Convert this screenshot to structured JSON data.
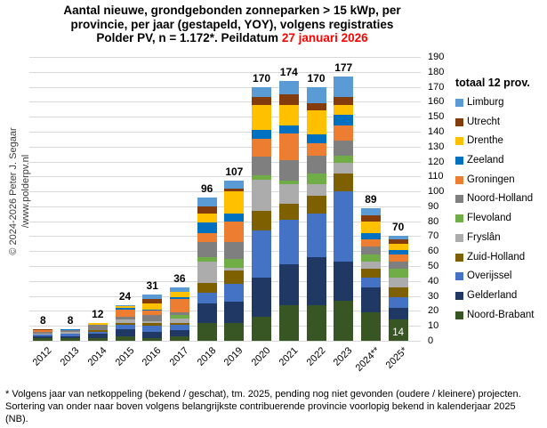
{
  "title": {
    "line1": "Aantal nieuwe, grondgebonden zonneparken > 15 kWp, per",
    "line2": "provincie, per jaar (gestapeld, YOY), volgens registraties",
    "line3_prefix": "Polder PV, n = 1.172*. Peildatum ",
    "line3_date": "27 januari 2026",
    "date_color": "#FF0000"
  },
  "copyright": {
    "line1": "© 2024-2026 Peter J. Segaar",
    "line2": "/www.polderpv.nl"
  },
  "legend": {
    "header": "totaal 12 prov."
  },
  "footnote": "* Volgens jaar van netkoppeling (bekend / geschat), tm. 2025, pending nog niet gevonden (oudere / kleinere) projecten. Sortering van onder naar boven volgens belangrijkste contribuerende provincie voorlopig bekend in kalenderjaar 2025 (NB).",
  "chart_data": {
    "type": "bar",
    "stacked": true,
    "stack_order": "bottom-to-top",
    "legend_order": "top-of-stack-first",
    "grid": true,
    "legend_position": "right",
    "ylim": [
      0,
      190
    ],
    "ytick_step": 10,
    "xlabel": "",
    "ylabel": "",
    "categories": [
      "2012",
      "2013",
      "2014",
      "2015",
      "2016",
      "2017",
      "2018",
      "2019",
      "2020",
      "2021",
      "2022",
      "2023",
      "2024**",
      "2025*"
    ],
    "totals": [
      8,
      8,
      12,
      24,
      31,
      36,
      96,
      107,
      170,
      174,
      170,
      177,
      89,
      70
    ],
    "series": [
      {
        "name": "Noord-Brabant",
        "color": "#375623",
        "values": [
          2,
          2,
          2,
          3,
          2,
          3,
          12,
          12,
          16,
          24,
          24,
          27,
          19,
          14
        ]
      },
      {
        "name": "Gelderland",
        "color": "#1F3864",
        "values": [
          1,
          1,
          3,
          5,
          4,
          4,
          13,
          14,
          26,
          27,
          32,
          26,
          17,
          8
        ]
      },
      {
        "name": "Overijssel",
        "color": "#4472C4",
        "values": [
          1,
          2,
          1,
          3,
          4,
          4,
          7,
          12,
          32,
          30,
          29,
          47,
          6,
          7
        ]
      },
      {
        "name": "Zuid-Holland",
        "color": "#7F6000",
        "values": [
          0,
          0,
          1,
          1,
          2,
          1,
          7,
          9,
          13,
          11,
          12,
          12,
          6,
          7
        ]
      },
      {
        "name": "Fryslân",
        "color": "#ACACAC",
        "values": [
          1,
          1,
          0,
          2,
          1,
          3,
          14,
          2,
          21,
          13,
          8,
          7,
          5,
          6
        ]
      },
      {
        "name": "Flevoland",
        "color": "#70AD47",
        "values": [
          0,
          0,
          0,
          0,
          0,
          2,
          3,
          6,
          3,
          2,
          7,
          5,
          5,
          6
        ]
      },
      {
        "name": "Noord-Holland",
        "color": "#7F7F7F",
        "values": [
          1,
          1,
          4,
          2,
          4,
          2,
          10,
          11,
          12,
          14,
          12,
          10,
          5,
          5
        ]
      },
      {
        "name": "Groningen",
        "color": "#ED7D31",
        "values": [
          1,
          0,
          0,
          5,
          3,
          9,
          6,
          14,
          12,
          18,
          8,
          10,
          5,
          5
        ]
      },
      {
        "name": "Zeeland",
        "color": "#0070C0",
        "values": [
          0,
          1,
          0,
          1,
          1,
          1,
          7,
          5,
          6,
          5,
          6,
          7,
          4,
          3
        ]
      },
      {
        "name": "Drenthe",
        "color": "#FFC000",
        "values": [
          0,
          0,
          1,
          1,
          4,
          4,
          6,
          15,
          17,
          14,
          16,
          7,
          8,
          4
        ]
      },
      {
        "name": "Utrecht",
        "color": "#843C0C",
        "values": [
          1,
          0,
          0,
          0,
          3,
          0,
          5,
          2,
          5,
          7,
          5,
          5,
          4,
          3
        ]
      },
      {
        "name": "Limburg",
        "color": "#5B9BD5",
        "values": [
          0,
          0,
          0,
          1,
          3,
          3,
          6,
          5,
          7,
          9,
          11,
          14,
          5,
          2
        ]
      }
    ],
    "inside_label": {
      "category": "2025*",
      "series": "Noord-Brabant",
      "value": "14"
    }
  }
}
